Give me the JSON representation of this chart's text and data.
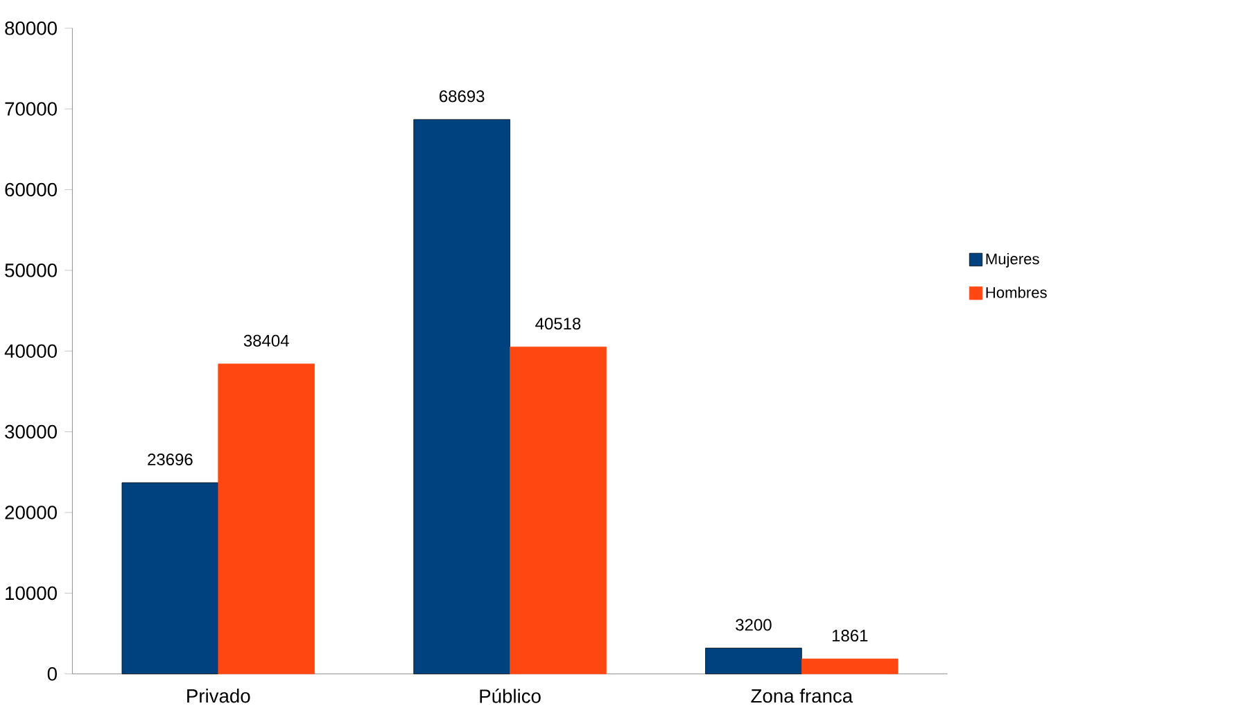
{
  "chart_data": {
    "type": "bar",
    "categories": [
      "Privado",
      "Público",
      "Zona franca"
    ],
    "series": [
      {
        "name": "Mujeres",
        "color": "#00427f",
        "values": [
          23696,
          68693,
          3200
        ]
      },
      {
        "name": "Hombres",
        "color": "#ff4712",
        "values": [
          38404,
          40518,
          1861
        ]
      }
    ],
    "ylim": [
      0,
      80000
    ],
    "yticks": [
      0,
      10000,
      20000,
      30000,
      40000,
      50000,
      60000,
      70000,
      80000
    ],
    "data_labels": true,
    "legend": "right"
  }
}
